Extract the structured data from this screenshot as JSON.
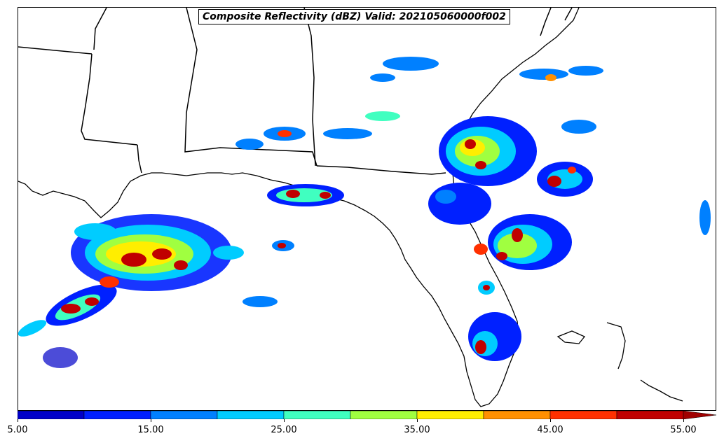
{
  "map": {
    "title": "Composite Reflectivity (dBZ) Valid: 202105060000f002",
    "variable": "Composite Reflectivity",
    "units": "dBZ",
    "valid_time": "202105060000f002",
    "region": "Southeastern United States / Gulf of Mexico"
  },
  "colorbar": {
    "ticks": [
      "5.00",
      "15.00",
      "25.00",
      "35.00",
      "45.00",
      "55.00"
    ],
    "extend": "max",
    "colors": [
      "#0000c8",
      "#0020ff",
      "#0080ff",
      "#00ccff",
      "#40ffc0",
      "#a0ff40",
      "#ffee00",
      "#ff9000",
      "#ff3000",
      "#c00000"
    ],
    "over_color": "#a00000"
  }
}
